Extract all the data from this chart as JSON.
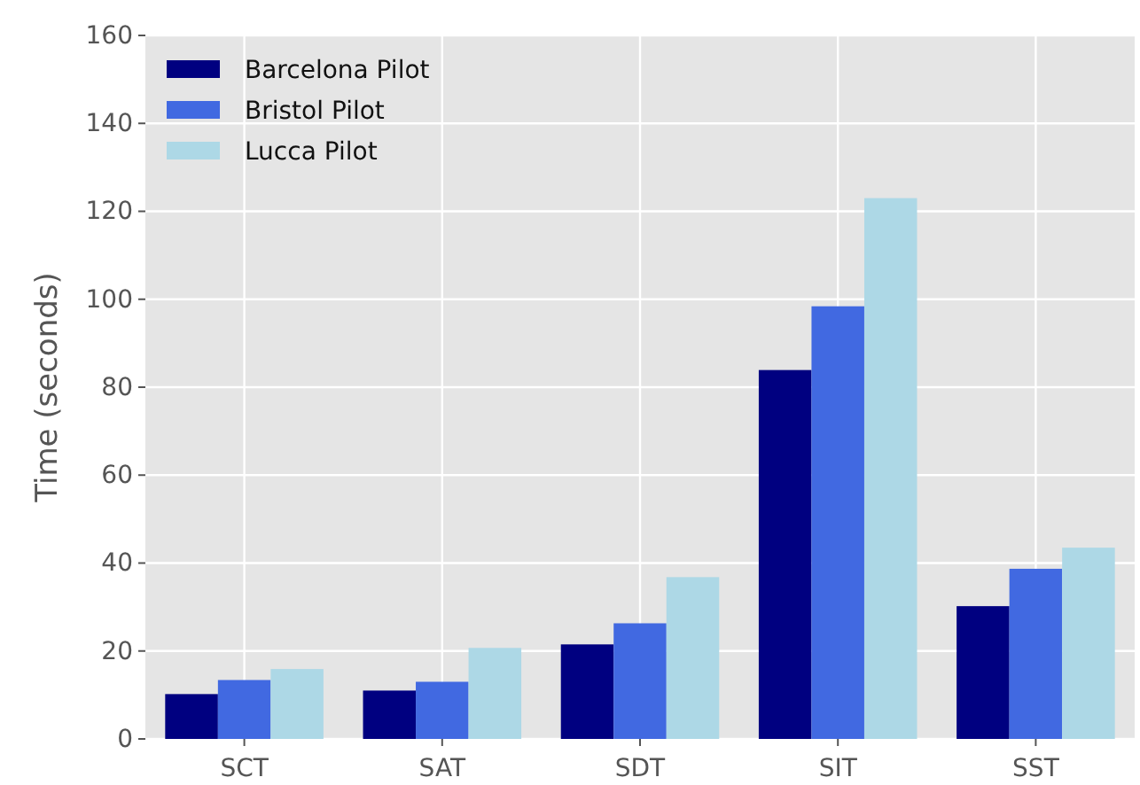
{
  "chart_data": {
    "type": "bar",
    "ylabel": "Time (seconds)",
    "categories": [
      "SCT",
      "SAT",
      "SDT",
      "SIT",
      "SST"
    ],
    "series": [
      {
        "name": "Barcelona Pilot",
        "color": "#000080",
        "values": [
          10.2,
          11.0,
          21.5,
          83.9,
          30.2
        ]
      },
      {
        "name": "Bristol Pilot",
        "color": "#4169e1",
        "values": [
          13.4,
          13.0,
          26.3,
          98.4,
          38.7
        ]
      },
      {
        "name": "Lucca Pilot",
        "color": "#add8e6",
        "values": [
          15.9,
          20.7,
          36.8,
          123.0,
          43.5
        ]
      }
    ],
    "ylim": [
      0,
      160
    ],
    "yticks": [
      0,
      20,
      40,
      60,
      80,
      100,
      120,
      140,
      160
    ],
    "grid": true,
    "legend": "top left"
  }
}
